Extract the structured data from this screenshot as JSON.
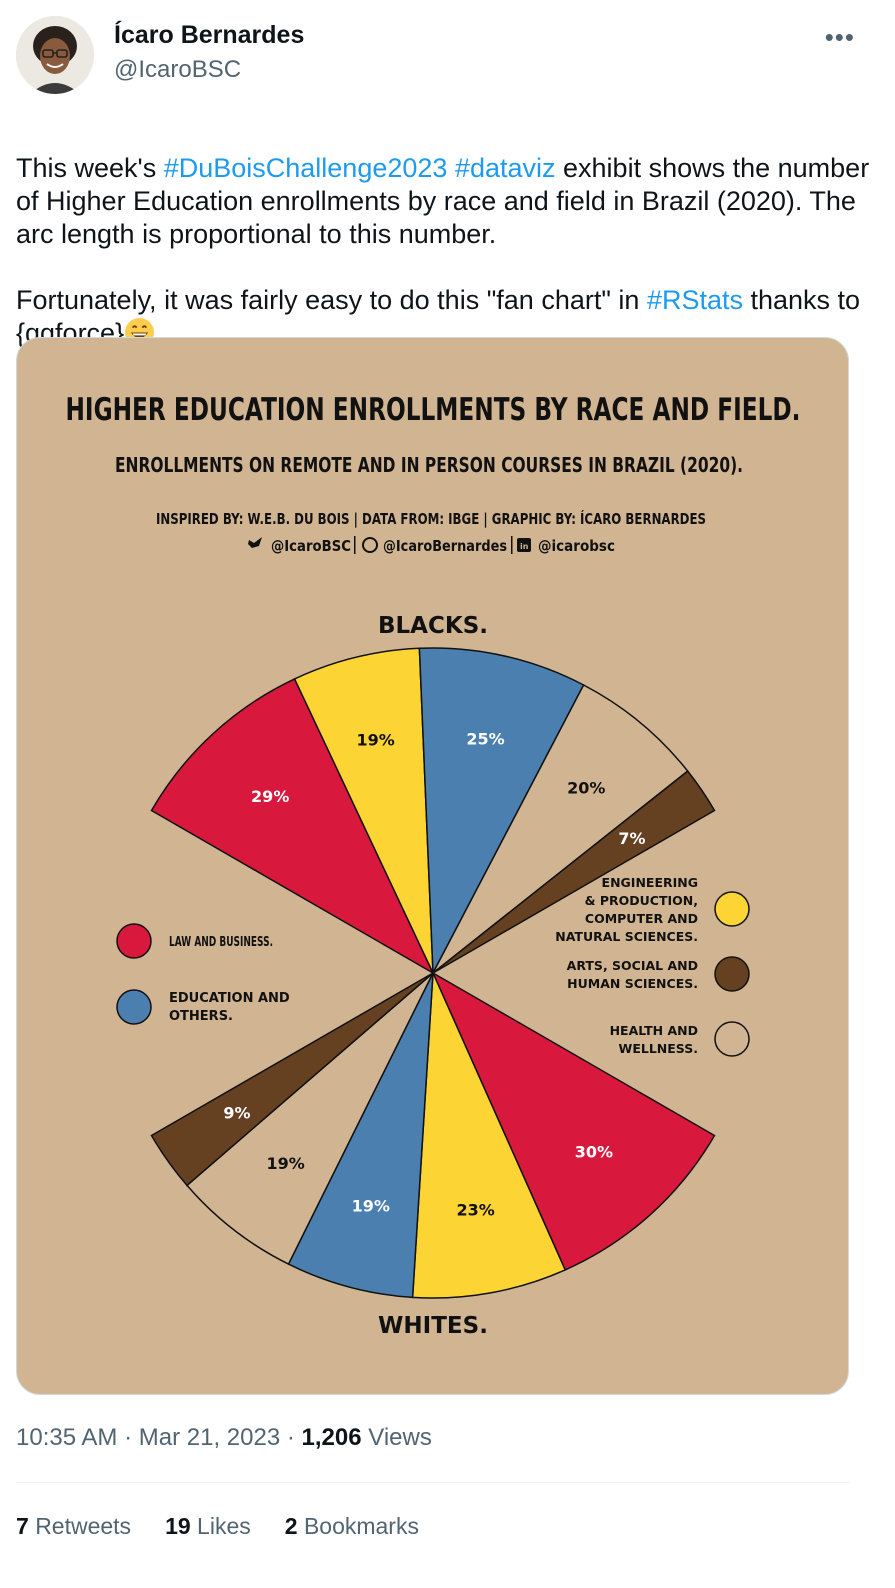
{
  "author": {
    "display_name": "Ícaro Bernardes",
    "handle": "@IcaroBSC"
  },
  "more_label": "•••",
  "tweet": {
    "parts": [
      {
        "text": "This week's ",
        "link": false
      },
      {
        "text": "#DuBoisChallenge2023",
        "link": true
      },
      {
        "text": " ",
        "link": false
      },
      {
        "text": "#dataviz",
        "link": true
      },
      {
        "text": " exhibit shows the number of Higher Education enrollments by race and field in Brazil (2020). The arc length is proportional to this number.\n\nFortunately, it was fairly easy to do this \"fan chart\" in ",
        "link": false
      },
      {
        "text": "#RStats",
        "link": true
      },
      {
        "text": " thanks to {ggforce}",
        "link": false
      }
    ],
    "emoji": "grinning-face-emoji"
  },
  "infographic": {
    "title": "HIGHER EDUCATION ENROLLMENTS BY RACE AND FIELD.",
    "subtitle": "ENROLLMENTS ON REMOTE AND IN PERSON COURSES IN BRAZIL (2020).",
    "credits": "INSPIRED BY: W.E.B. DU BOIS | DATA FROM: IBGE | GRAPHIC BY: ÍCARO BERNARDES",
    "socials": [
      "@IcaroBSC",
      "@IcaroBernardes",
      "@icarobsc"
    ],
    "background": "#d1b592"
  },
  "chart_data": {
    "type": "pie",
    "groups": [
      {
        "label": "BLACKS.",
        "slices": [
          {
            "category": "LAW AND BUSINESS.",
            "value": 29,
            "label": "29%"
          },
          {
            "category": "ENGINEERING & PRODUCTION, COMPUTER AND NATURAL SCIENCES.",
            "value": 19,
            "label": "19%"
          },
          {
            "category": "EDUCATION AND OTHERS.",
            "value": 25,
            "label": "25%"
          },
          {
            "category": "HEALTH AND WELLNESS.",
            "value": 20,
            "label": "20%"
          },
          {
            "category": "ARTS, SOCIAL AND HUMAN SCIENCES.",
            "value": 7,
            "label": "7%"
          }
        ]
      },
      {
        "label": "WHITES.",
        "slices": [
          {
            "category": "LAW AND BUSINESS.",
            "value": 30,
            "label": "30%"
          },
          {
            "category": "ENGINEERING & PRODUCTION, COMPUTER AND NATURAL SCIENCES.",
            "value": 23,
            "label": "23%"
          },
          {
            "category": "EDUCATION AND OTHERS.",
            "value": 19,
            "label": "19%"
          },
          {
            "category": "HEALTH AND WELLNESS.",
            "value": 19,
            "label": "19%"
          },
          {
            "category": "ARTS, SOCIAL AND HUMAN SCIENCES.",
            "value": 9,
            "label": "9%"
          }
        ]
      }
    ],
    "legend": [
      {
        "label": "LAW AND BUSINESS.",
        "color": "#d8193d"
      },
      {
        "label": "EDUCATION AND OTHERS.",
        "color": "#4a7fb0"
      },
      {
        "label": "ENGINEERING & PRODUCTION, COMPUTER AND NATURAL SCIENCES.",
        "color": "#fcd535"
      },
      {
        "label": "ARTS, SOCIAL AND HUMAN SCIENCES.",
        "color": "#654122"
      },
      {
        "label": "HEALTH AND WELLNESS.",
        "color": "#d1b592"
      }
    ],
    "colors": {
      "LAW AND BUSINESS.": "#d8193d",
      "ENGINEERING & PRODUCTION, COMPUTER AND NATURAL SCIENCES.": "#fcd535",
      "EDUCATION AND OTHERS.": "#4a7fb0",
      "HEALTH AND WELLNESS.": "#d1b592",
      "ARTS, SOCIAL AND HUMAN SCIENCES.": "#654122"
    }
  },
  "meta": {
    "time": "10:35 AM",
    "date": "Mar 21, 2023",
    "views_count": "1,206",
    "views_label": "Views"
  },
  "stats": {
    "retweets_count": "7",
    "retweets_label": "Retweets",
    "likes_count": "19",
    "likes_label": "Likes",
    "bookmarks_count": "2",
    "bookmarks_label": "Bookmarks"
  }
}
